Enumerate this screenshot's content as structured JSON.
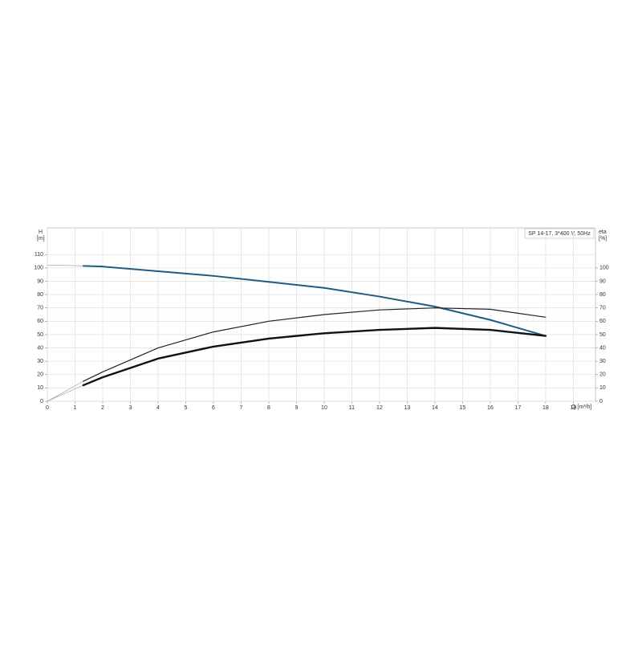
{
  "chart_data": {
    "type": "line",
    "title": "SP 14-17, 3*400 V, 50Hz",
    "y_label": [
      "H",
      "[m]"
    ],
    "y2_label": [
      "eta",
      "[%]"
    ],
    "x_label": "Q [m³/h]",
    "xlim": [
      0,
      19.8
    ],
    "ylim": [
      0,
      130
    ],
    "y2lim": [
      0,
      130
    ],
    "xticks": [
      0,
      1,
      2,
      3,
      4,
      5,
      6,
      7,
      8,
      9,
      10,
      11,
      12,
      13,
      14,
      15,
      16,
      17,
      18,
      19
    ],
    "yticks": [
      0,
      10,
      20,
      30,
      40,
      50,
      60,
      70,
      80,
      90,
      100,
      110
    ],
    "y2ticks": [
      0,
      10,
      20,
      30,
      40,
      50,
      60,
      70,
      80,
      90,
      100
    ],
    "grid": true,
    "series": [
      {
        "color": "#aaaaaa",
        "width": 0.8,
        "x": [
          0,
          0.5,
          1.3
        ],
        "values": [
          102,
          102,
          101.5
        ]
      },
      {
        "color": "#1f5a82",
        "width": 2,
        "x": [
          1.3,
          2,
          4,
          6,
          8,
          10,
          12,
          14,
          16,
          18
        ],
        "values": [
          101.5,
          101,
          97.5,
          94,
          89.5,
          85,
          78.5,
          71,
          61,
          49
        ]
      },
      {
        "color": "#aaaaaa",
        "width": 0.8,
        "axis": "y2",
        "x": [
          0,
          1.3
        ],
        "values": [
          0,
          15
        ]
      },
      {
        "color": "#222222",
        "width": 1.2,
        "axis": "y2",
        "x": [
          1.3,
          2,
          4,
          6,
          8,
          10,
          12,
          14,
          16,
          18
        ],
        "values": [
          15,
          22,
          40,
          52,
          60,
          65,
          68.5,
          70,
          69,
          63
        ]
      },
      {
        "color": "#aaaaaa",
        "width": 0.8,
        "axis": "y2",
        "x": [
          0,
          1.3
        ],
        "values": [
          0,
          12
        ]
      },
      {
        "color": "#111111",
        "width": 2.4,
        "axis": "y2",
        "x": [
          1.3,
          2,
          4,
          6,
          8,
          10,
          12,
          14,
          16,
          18
        ],
        "values": [
          12,
          18,
          32,
          41,
          47,
          51,
          53.5,
          55,
          53.5,
          49
        ]
      }
    ]
  }
}
